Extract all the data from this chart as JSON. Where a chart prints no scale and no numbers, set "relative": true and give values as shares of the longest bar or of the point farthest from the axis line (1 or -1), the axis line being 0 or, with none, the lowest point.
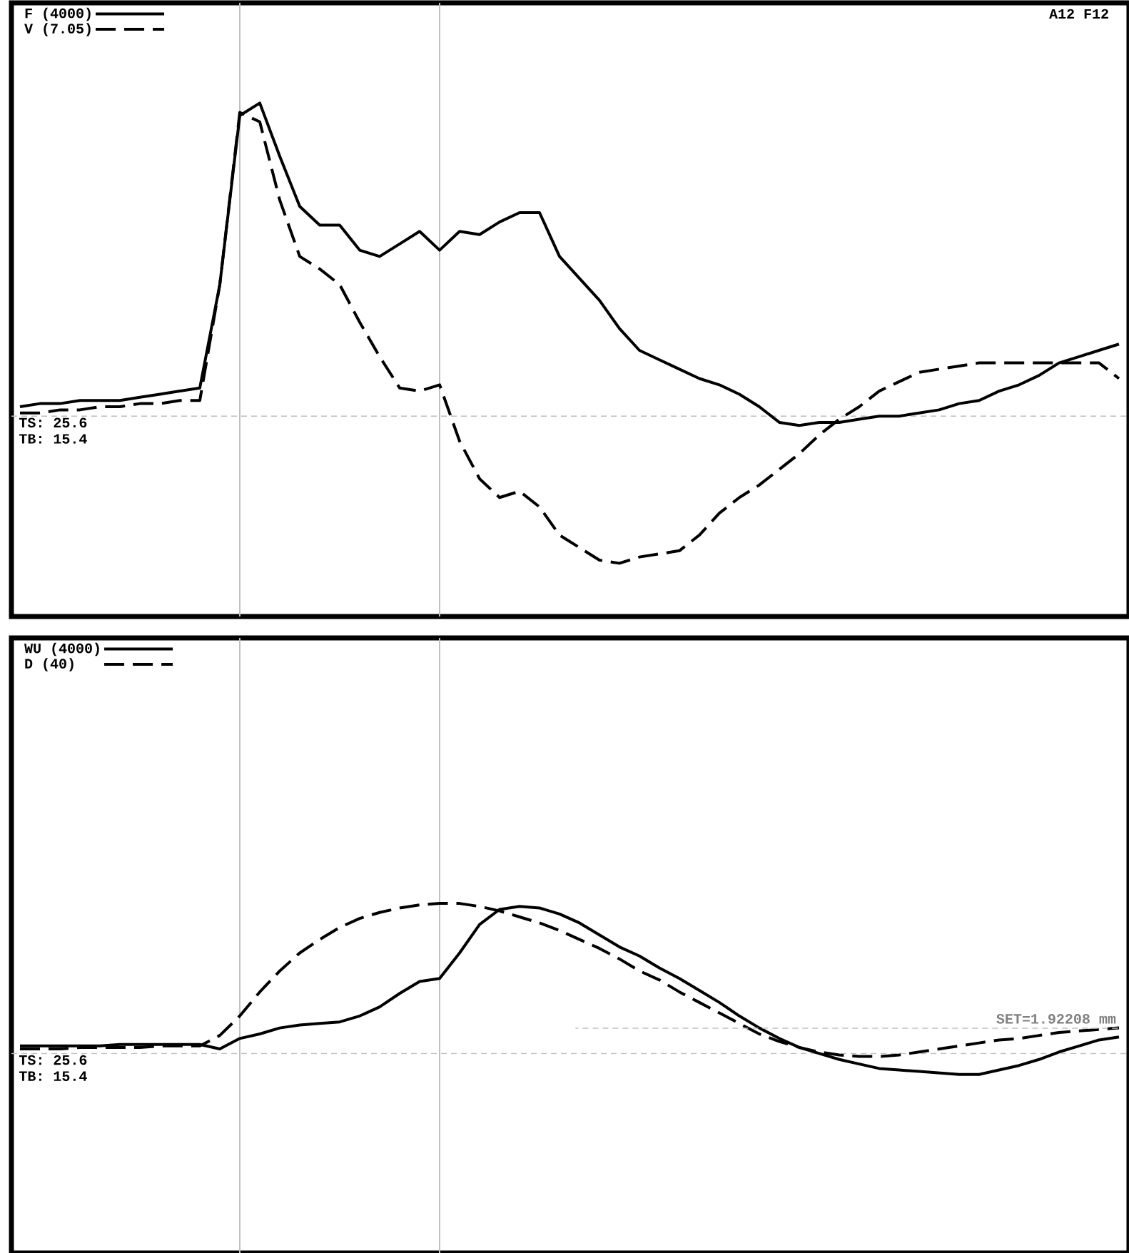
{
  "chart_data": [
    {
      "type": "line",
      "relative": true,
      "categories": [
        null,
        null,
        null,
        null,
        null,
        null,
        null,
        null,
        null,
        null,
        null,
        null,
        null,
        null,
        null,
        null,
        null,
        null,
        null,
        null,
        null,
        null,
        null,
        null,
        null,
        null,
        null,
        null,
        null,
        null,
        null,
        null,
        null,
        null,
        null,
        null,
        null,
        null,
        null,
        null,
        null,
        null,
        null,
        null,
        null,
        null,
        null,
        null,
        null,
        null,
        null,
        null,
        null,
        null,
        null,
        null
      ],
      "series": [
        {
          "name": "F (4000)",
          "color": "#000000",
          "line_style": "solid",
          "values": [
            0.03,
            0.04,
            0.04,
            0.05,
            0.05,
            0.05,
            0.06,
            0.07,
            0.08,
            0.09,
            0.42,
            0.96,
            1.0,
            0.83,
            0.67,
            0.61,
            0.61,
            0.53,
            0.51,
            0.55,
            0.59,
            0.53,
            0.59,
            0.58,
            0.62,
            0.65,
            0.65,
            0.51,
            0.44,
            0.37,
            0.28,
            0.21,
            0.18,
            0.15,
            0.12,
            0.1,
            0.07,
            0.03,
            -0.02,
            -0.03,
            -0.02,
            -0.02,
            -0.01,
            0,
            0,
            0.01,
            0.02,
            0.04,
            0.05,
            0.08,
            0.1,
            0.13,
            0.17,
            0.19,
            0.21,
            0.23
          ]
        },
        {
          "name": "V (7.05)",
          "color": "#000000",
          "line_style": "dashed",
          "values": [
            0.01,
            0.01,
            0.02,
            0.02,
            0.03,
            0.03,
            0.04,
            0.04,
            0.05,
            0.05,
            0.42,
            0.97,
            0.94,
            0.69,
            0.51,
            0.47,
            0.42,
            0.3,
            0.19,
            0.09,
            0.08,
            0.1,
            -0.08,
            -0.2,
            -0.26,
            -0.24,
            -0.29,
            -0.38,
            -0.42,
            -0.46,
            -0.47,
            -0.45,
            -0.44,
            -0.43,
            -0.38,
            -0.31,
            -0.26,
            -0.22,
            -0.17,
            -0.12,
            -0.06,
            -0.01,
            0.03,
            0.08,
            0.11,
            0.14,
            0.15,
            0.16,
            0.17,
            0.17,
            0.17,
            0.17,
            0.17,
            0.17,
            0.17,
            0.12
          ]
        }
      ],
      "legend": "top left",
      "tick_labels": false,
      "ref_lines": [
        {
          "axis": "y",
          "value": 0,
          "color": "#c0c0c0",
          "line_style": "dashed"
        }
      ],
      "annotations": [
        "A12 F12",
        "TS: 25.6",
        "TB: 15.4"
      ]
    },
    {
      "type": "line",
      "relative": true,
      "categories": [
        null,
        null,
        null,
        null,
        null,
        null,
        null,
        null,
        null,
        null,
        null,
        null,
        null,
        null,
        null,
        null,
        null,
        null,
        null,
        null,
        null,
        null,
        null,
        null,
        null,
        null,
        null,
        null,
        null,
        null,
        null,
        null,
        null,
        null,
        null,
        null,
        null,
        null,
        null,
        null,
        null,
        null,
        null,
        null,
        null,
        null,
        null,
        null,
        null,
        null,
        null,
        null,
        null,
        null,
        null,
        null
      ],
      "series": [
        {
          "name": "WU (4000)",
          "color": "#000000",
          "line_style": "solid",
          "values": [
            0.05,
            0.05,
            0.05,
            0.05,
            0.05,
            0.06,
            0.06,
            0.06,
            0.06,
            0.06,
            0.03,
            0.1,
            0.13,
            0.17,
            0.19,
            0.2,
            0.21,
            0.25,
            0.31,
            0.4,
            0.48,
            0.5,
            0.67,
            0.86,
            0.96,
            0.98,
            0.97,
            0.93,
            0.87,
            0.79,
            0.71,
            0.65,
            0.57,
            0.5,
            0.42,
            0.34,
            0.25,
            0.17,
            0.1,
            0.04,
            0,
            -0.04,
            -0.07,
            -0.1,
            -0.11,
            -0.12,
            -0.13,
            -0.14,
            -0.14,
            -0.11,
            -0.08,
            -0.04,
            0.01,
            0.05,
            0.09,
            0.11
          ]
        },
        {
          "name": "D (40)",
          "color": "#000000",
          "line_style": "dashed",
          "values": [
            0.03,
            0.03,
            0.03,
            0.04,
            0.04,
            0.04,
            0.04,
            0.05,
            0.05,
            0.05,
            0.12,
            0.25,
            0.41,
            0.55,
            0.67,
            0.76,
            0.84,
            0.9,
            0.94,
            0.97,
            0.99,
            1.0,
            1.0,
            0.98,
            0.95,
            0.91,
            0.87,
            0.82,
            0.76,
            0.7,
            0.63,
            0.55,
            0.49,
            0.41,
            0.34,
            0.27,
            0.2,
            0.13,
            0.08,
            0.04,
            0.01,
            -0.01,
            -0.02,
            -0.02,
            -0.01,
            0.01,
            0.03,
            0.05,
            0.07,
            0.09,
            0.1,
            0.12,
            0.14,
            0.15,
            0.16,
            0.17
          ]
        }
      ],
      "legend": "top left",
      "tick_labels": false,
      "ref_lines": [
        {
          "axis": "y",
          "value": 0,
          "color": "#c0c0c0",
          "line_style": "dashed"
        }
      ],
      "annotations": [
        "SET=1.92208 mm",
        "TS: 25.6",
        "TB: 15.4"
      ]
    }
  ]
}
